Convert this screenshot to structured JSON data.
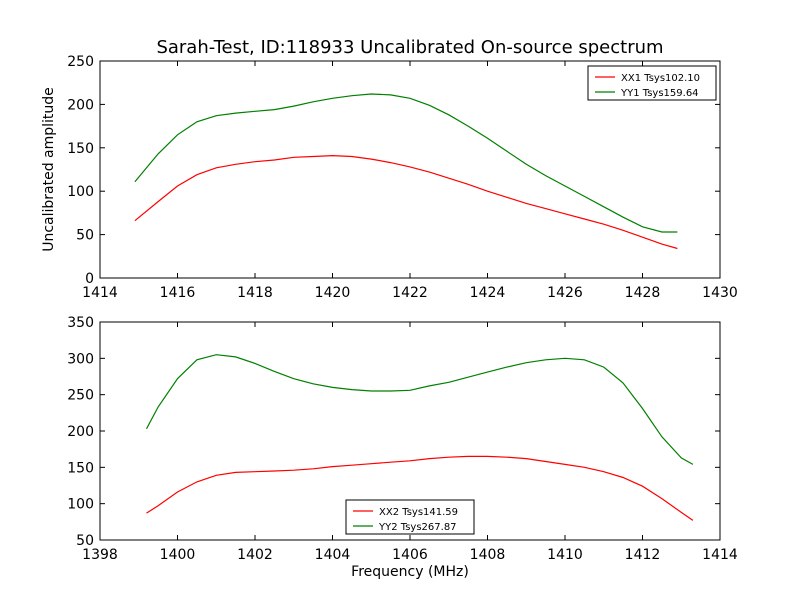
{
  "chart_data": [
    {
      "type": "line",
      "title": "Sarah-Test, ID:118933 Uncalibrated On-source spectrum",
      "xlabel": "",
      "ylabel": "Uncalibrated amplitude",
      "xlim": [
        1414,
        1430
      ],
      "ylim": [
        0,
        250
      ],
      "xticks": [
        "1414",
        "1416",
        "1418",
        "1420",
        "1422",
        "1424",
        "1426",
        "1428",
        "1430"
      ],
      "yticks": [
        "0",
        "50",
        "100",
        "150",
        "200",
        "250"
      ],
      "legend_position": "top-right",
      "series": [
        {
          "name": "XX1 Tsys102.10",
          "color": "#ff0000",
          "x": [
            1414.9,
            1415.5,
            1416.0,
            1416.5,
            1417.0,
            1417.5,
            1418.0,
            1418.5,
            1419.0,
            1419.5,
            1420.0,
            1420.5,
            1421.0,
            1421.5,
            1422.0,
            1422.5,
            1423.0,
            1423.5,
            1424.0,
            1424.5,
            1425.0,
            1425.5,
            1426.0,
            1426.5,
            1427.0,
            1427.5,
            1428.0,
            1428.5,
            1428.9
          ],
          "y": [
            66,
            88,
            106,
            119,
            127,
            131,
            134,
            136,
            139,
            140,
            141,
            140,
            137,
            133,
            128,
            122,
            115,
            108,
            100,
            93,
            86,
            80,
            74,
            68,
            62,
            55,
            47,
            39,
            34
          ]
        },
        {
          "name": "YY1 Tsys159.64",
          "color": "#008000",
          "x": [
            1414.9,
            1415.5,
            1416.0,
            1416.5,
            1417.0,
            1417.5,
            1418.0,
            1418.5,
            1419.0,
            1419.5,
            1420.0,
            1420.5,
            1421.0,
            1421.5,
            1422.0,
            1422.5,
            1423.0,
            1423.5,
            1424.0,
            1424.5,
            1425.0,
            1425.5,
            1426.0,
            1426.5,
            1427.0,
            1427.5,
            1428.0,
            1428.5,
            1428.9
          ],
          "y": [
            111,
            143,
            165,
            180,
            187,
            190,
            192,
            194,
            198,
            203,
            207,
            210,
            212,
            211,
            207,
            199,
            188,
            175,
            161,
            146,
            131,
            118,
            106,
            94,
            82,
            70,
            59,
            53,
            53
          ]
        }
      ]
    },
    {
      "type": "line",
      "title": "",
      "xlabel": "Frequency (MHz)",
      "ylabel": "",
      "xlim": [
        1398,
        1414
      ],
      "ylim": [
        50,
        350
      ],
      "xticks": [
        "1398",
        "1400",
        "1402",
        "1404",
        "1406",
        "1408",
        "1410",
        "1412",
        "1414"
      ],
      "yticks": [
        "50",
        "100",
        "150",
        "200",
        "250",
        "300",
        "350"
      ],
      "legend_position": "lower-center",
      "series": [
        {
          "name": "XX2 Tsys141.59",
          "color": "#ff0000",
          "x": [
            1399.2,
            1399.5,
            1400.0,
            1400.5,
            1401.0,
            1401.5,
            1402.0,
            1402.5,
            1403.0,
            1403.5,
            1404.0,
            1404.5,
            1405.0,
            1405.5,
            1406.0,
            1406.5,
            1407.0,
            1407.5,
            1408.0,
            1408.5,
            1409.0,
            1409.5,
            1410.0,
            1410.5,
            1411.0,
            1411.5,
            1412.0,
            1412.5,
            1413.0,
            1413.3
          ],
          "y": [
            87,
            97,
            116,
            130,
            139,
            143,
            144,
            145,
            146,
            148,
            151,
            153,
            155,
            157,
            159,
            162,
            164,
            165,
            165,
            164,
            162,
            158,
            154,
            150,
            144,
            136,
            124,
            107,
            88,
            77
          ]
        },
        {
          "name": "YY2 Tsys267.87",
          "color": "#008000",
          "x": [
            1399.2,
            1399.5,
            1400.0,
            1400.5,
            1401.0,
            1401.5,
            1402.0,
            1402.5,
            1403.0,
            1403.5,
            1404.0,
            1404.5,
            1405.0,
            1405.5,
            1406.0,
            1406.5,
            1407.0,
            1407.5,
            1408.0,
            1408.5,
            1409.0,
            1409.5,
            1410.0,
            1410.5,
            1411.0,
            1411.5,
            1412.0,
            1412.5,
            1413.0,
            1413.3
          ],
          "y": [
            203,
            233,
            272,
            298,
            305,
            302,
            293,
            282,
            272,
            265,
            260,
            257,
            255,
            255,
            256,
            262,
            267,
            274,
            281,
            288,
            294,
            298,
            300,
            298,
            288,
            266,
            231,
            192,
            163,
            154
          ]
        }
      ]
    }
  ]
}
